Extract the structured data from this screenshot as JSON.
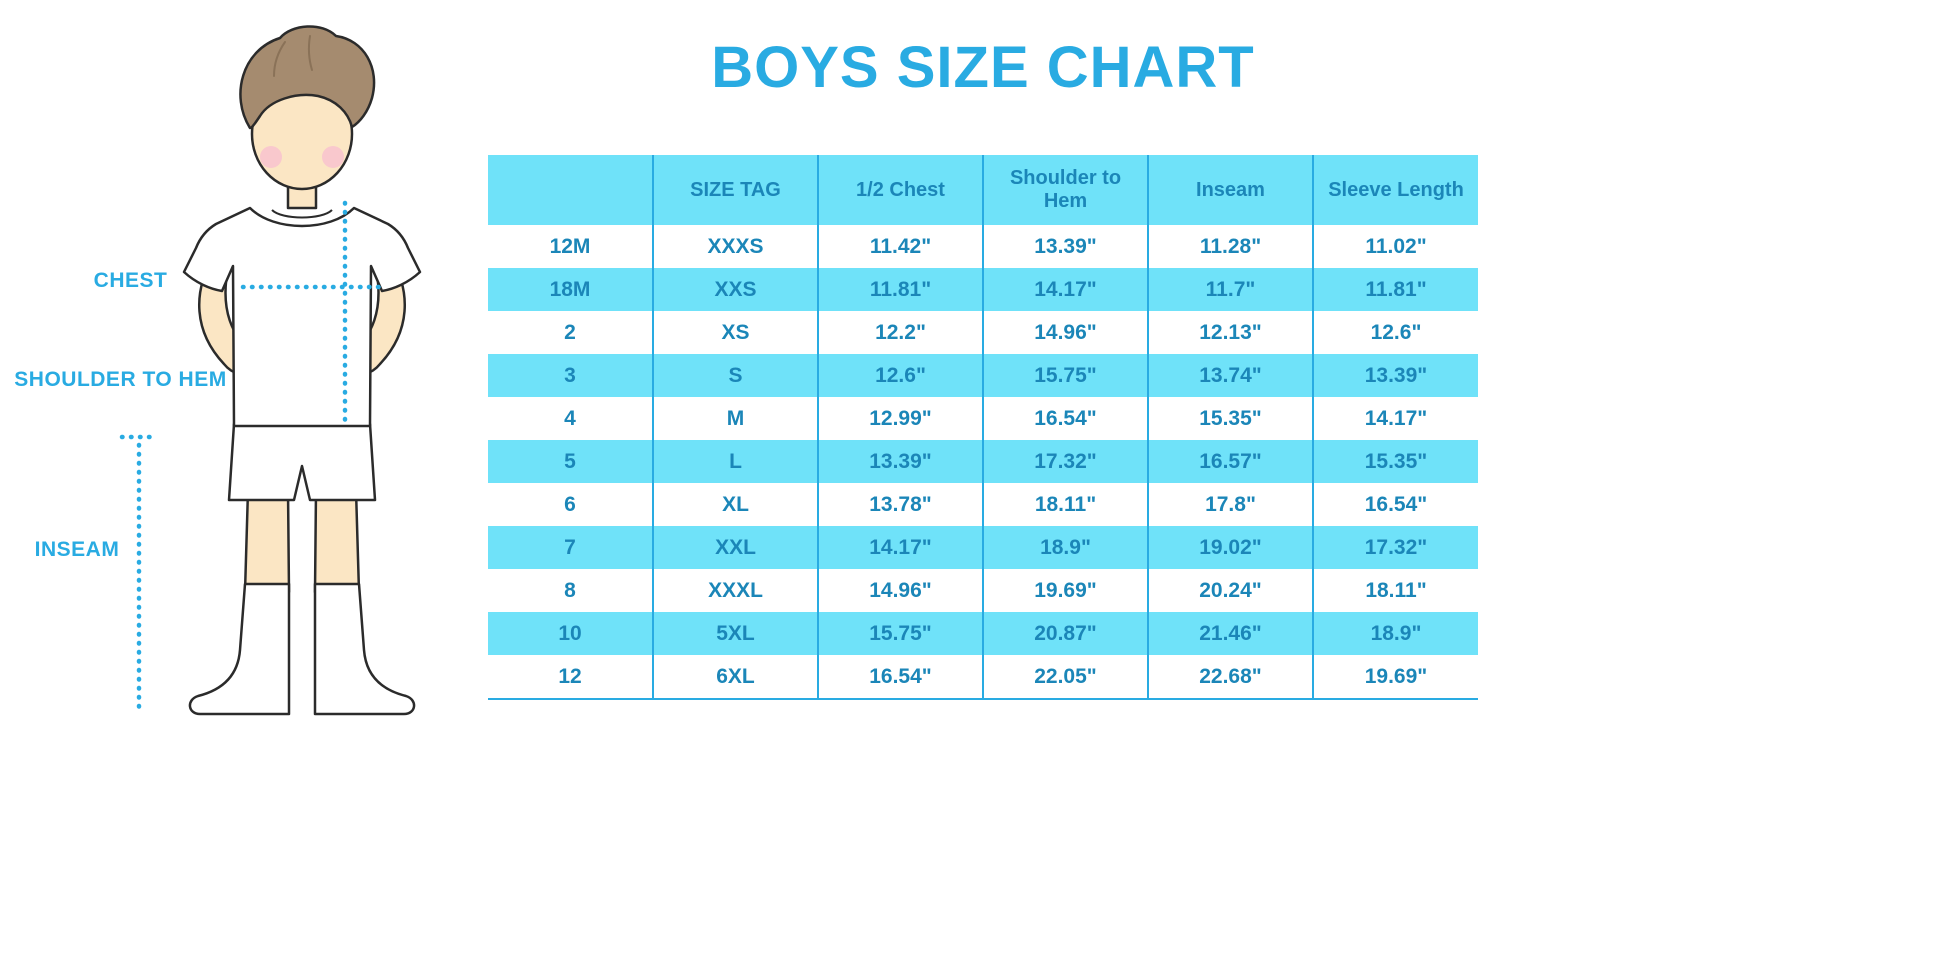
{
  "title": "BOYS SIZE CHART",
  "colors": {
    "accent": "#29ABE2",
    "stripe": "#6FE2F9",
    "table_text": "#1B86B8",
    "skin": "#FBE6C4",
    "hair": "#A58B6F",
    "blush": "#F8C4CE"
  },
  "figure": {
    "chest_label": "CHEST",
    "shoulder_label": "SHOULDER TO HEM",
    "inseam_label": "INSEAM"
  },
  "chart_data": {
    "type": "table",
    "title": "BOYS SIZE CHART",
    "columns": [
      "",
      "SIZE TAG",
      "1/2 Chest",
      "Shoulder to Hem",
      "Inseam",
      "Sleeve Length"
    ],
    "rows": [
      [
        "12M",
        "XXXS",
        "11.42\"",
        "13.39\"",
        "11.28\"",
        "11.02\""
      ],
      [
        "18M",
        "XXS",
        "11.81\"",
        "14.17\"",
        "11.7\"",
        "11.81\""
      ],
      [
        "2",
        "XS",
        "12.2\"",
        "14.96\"",
        "12.13\"",
        "12.6\""
      ],
      [
        "3",
        "S",
        "12.6\"",
        "15.75\"",
        "13.74\"",
        "13.39\""
      ],
      [
        "4",
        "M",
        "12.99\"",
        "16.54\"",
        "15.35\"",
        "14.17\""
      ],
      [
        "5",
        "L",
        "13.39\"",
        "17.32\"",
        "16.57\"",
        "15.35\""
      ],
      [
        "6",
        "XL",
        "13.78\"",
        "18.11\"",
        "17.8\"",
        "16.54\""
      ],
      [
        "7",
        "XXL",
        "14.17\"",
        "18.9\"",
        "19.02\"",
        "17.32\""
      ],
      [
        "8",
        "XXXL",
        "14.96\"",
        "19.69\"",
        "20.24\"",
        "18.11\""
      ],
      [
        "10",
        "5XL",
        "15.75\"",
        "20.87\"",
        "21.46\"",
        "18.9\""
      ],
      [
        "12",
        "6XL",
        "16.54\"",
        "22.05\"",
        "22.68\"",
        "19.69\""
      ]
    ]
  }
}
